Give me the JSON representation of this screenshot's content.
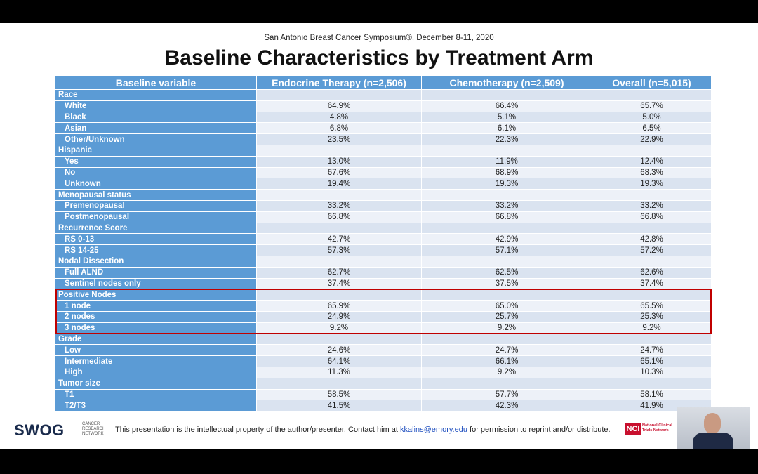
{
  "header": {
    "subtitle": "San Antonio Breast Cancer Symposium®, December 8-11, 2020",
    "title": "Baseline Characteristics by Treatment Arm"
  },
  "table": {
    "columns": [
      "Baseline variable",
      "Endocrine Therapy (n=2,506)",
      "Chemotherapy (n=2,509)",
      "Overall (n=5,015)"
    ],
    "rows": [
      [
        "Race"
      ],
      [
        "White",
        "64.9%",
        "66.4%",
        "65.7%"
      ],
      [
        "Black",
        "4.8%",
        "5.1%",
        "5.0%"
      ],
      [
        "Asian",
        "6.8%",
        "6.1%",
        "6.5%"
      ],
      [
        "Other/Unknown",
        "23.5%",
        "22.3%",
        "22.9%"
      ],
      [
        "Hispanic"
      ],
      [
        "Yes",
        "13.0%",
        "11.9%",
        "12.4%"
      ],
      [
        "No",
        "67.6%",
        "68.9%",
        "68.3%"
      ],
      [
        "Unknown",
        "19.4%",
        "19.3%",
        "19.3%"
      ],
      [
        "Menopausal status"
      ],
      [
        "Premenopausal",
        "33.2%",
        "33.2%",
        "33.2%"
      ],
      [
        "Postmenopausal",
        "66.8%",
        "66.8%",
        "66.8%"
      ],
      [
        "Recurrence Score"
      ],
      [
        "RS 0-13",
        "42.7%",
        "42.9%",
        "42.8%"
      ],
      [
        "RS 14-25",
        "57.3%",
        "57.1%",
        "57.2%"
      ],
      [
        "Nodal Dissection"
      ],
      [
        "Full ALND",
        "62.7%",
        "62.5%",
        "62.6%"
      ],
      [
        "Sentinel nodes only",
        "37.4%",
        "37.5%",
        "37.4%"
      ],
      [
        "Positive Nodes"
      ],
      [
        "1 node",
        "65.9%",
        "65.0%",
        "65.5%"
      ],
      [
        "2 nodes",
        "24.9%",
        "25.7%",
        "25.3%"
      ],
      [
        "3 nodes",
        "9.2%",
        "9.2%",
        "9.2%"
      ],
      [
        "Grade"
      ],
      [
        "Low",
        "24.6%",
        "24.7%",
        "24.7%"
      ],
      [
        "Intermediate",
        "64.1%",
        "66.1%",
        "65.1%"
      ],
      [
        "High",
        "11.3%",
        "9.2%",
        "10.3%"
      ],
      [
        "Tumor size"
      ],
      [
        "T1",
        "58.5%",
        "57.7%",
        "58.1%"
      ],
      [
        "T2/T3",
        "41.5%",
        "42.3%",
        "41.9%"
      ]
    ]
  },
  "footer": {
    "logo": "SWOG",
    "logo_sub": [
      "CANCER",
      "RESEARCH",
      "NETWORK"
    ],
    "notice_before": "This presentation is the intellectual property of the author/presenter. Contact him at",
    "email": "kkalins@emory.edu",
    "notice_after": "for permission to reprint and/or distribute.",
    "nci": "NCI",
    "nci_sub": [
      "National Clinical",
      "Trials Network"
    ]
  }
}
